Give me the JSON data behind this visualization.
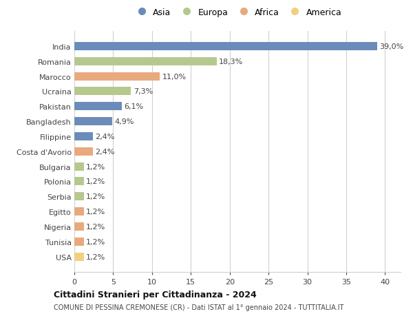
{
  "categories": [
    "India",
    "Romania",
    "Marocco",
    "Ucraina",
    "Pakistan",
    "Bangladesh",
    "Filippine",
    "Costa d'Avorio",
    "Bulgaria",
    "Polonia",
    "Serbia",
    "Egitto",
    "Nigeria",
    "Tunisia",
    "USA"
  ],
  "values": [
    39.0,
    18.3,
    11.0,
    7.3,
    6.1,
    4.9,
    2.4,
    2.4,
    1.2,
    1.2,
    1.2,
    1.2,
    1.2,
    1.2,
    1.2
  ],
  "labels": [
    "39,0%",
    "18,3%",
    "11,0%",
    "7,3%",
    "6,1%",
    "4,9%",
    "2,4%",
    "2,4%",
    "1,2%",
    "1,2%",
    "1,2%",
    "1,2%",
    "1,2%",
    "1,2%",
    "1,2%"
  ],
  "colors": [
    "#6b8cba",
    "#b5c98e",
    "#e8a97e",
    "#b5c98e",
    "#6b8cba",
    "#6b8cba",
    "#6b8cba",
    "#e8a97e",
    "#b5c98e",
    "#b5c98e",
    "#b5c98e",
    "#e8a97e",
    "#e8a97e",
    "#e8a97e",
    "#f0d080"
  ],
  "legend_labels": [
    "Asia",
    "Europa",
    "Africa",
    "America"
  ],
  "legend_colors": [
    "#6b8cba",
    "#b5c98e",
    "#e8a97e",
    "#f0d080"
  ],
  "title": "Cittadini Stranieri per Cittadinanza - 2024",
  "subtitle": "COMUNE DI PESSINA CREMONESE (CR) - Dati ISTAT al 1° gennaio 2024 - TUTTITALIA.IT",
  "xlim": [
    0,
    42
  ],
  "xticks": [
    0,
    5,
    10,
    15,
    20,
    25,
    30,
    35,
    40
  ],
  "bg_color": "#ffffff",
  "grid_color": "#d0d0d0",
  "bar_height": 0.55,
  "label_fontsize": 8,
  "ytick_fontsize": 8,
  "xtick_fontsize": 8
}
